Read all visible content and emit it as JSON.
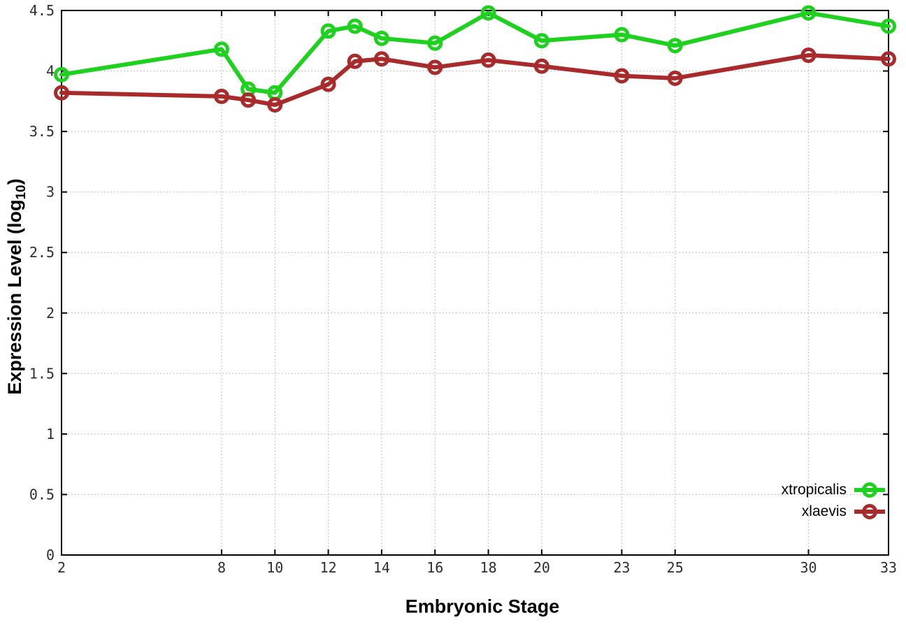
{
  "chart_data": {
    "type": "line",
    "title": "",
    "xlabel": "Embryonic Stage",
    "ylabel": "Expression Level (log10)",
    "ylabel_parts": {
      "prefix": "Expression Level (log",
      "sub": "10",
      "suffix": ")"
    },
    "x": [
      2,
      8,
      9,
      10,
      12,
      13,
      14,
      16,
      18,
      20,
      23,
      25,
      30,
      33
    ],
    "xlim": [
      2,
      33
    ],
    "ylim": [
      0,
      4.5
    ],
    "xticks": [
      2,
      8,
      10,
      12,
      14,
      16,
      18,
      20,
      23,
      25,
      30,
      33
    ],
    "xtick_labels": [
      "2",
      "8",
      "10",
      "12",
      "14",
      "16",
      "18",
      "20",
      "23",
      "25",
      "30",
      "33"
    ],
    "yticks": [
      0,
      0.5,
      1,
      1.5,
      2,
      2.5,
      3,
      3.5,
      4,
      4.5
    ],
    "ytick_labels": [
      "0",
      "0.5",
      "1",
      "1.5",
      "2",
      "2.5",
      "3",
      "3.5",
      "4",
      "4.5"
    ],
    "grid": true,
    "legend_position": "bottom-right",
    "series": [
      {
        "name": "xtropicalis",
        "color": "#1fd11f",
        "values": [
          3.97,
          4.18,
          3.85,
          3.82,
          4.33,
          4.37,
          4.27,
          4.23,
          4.48,
          4.25,
          4.3,
          4.21,
          4.48,
          4.37
        ]
      },
      {
        "name": "xlaevis",
        "color": "#a82a2a",
        "values": [
          3.82,
          3.79,
          3.76,
          3.72,
          3.89,
          4.08,
          4.1,
          4.03,
          4.09,
          4.04,
          3.96,
          3.94,
          4.13,
          4.1
        ]
      }
    ],
    "style": {
      "border_color": "#000000",
      "grid_color": "#b4b4b4",
      "tick_label_color": "#2e2e2e",
      "line_width": 6,
      "marker_radius": 8.5,
      "marker_stroke": 5
    }
  }
}
